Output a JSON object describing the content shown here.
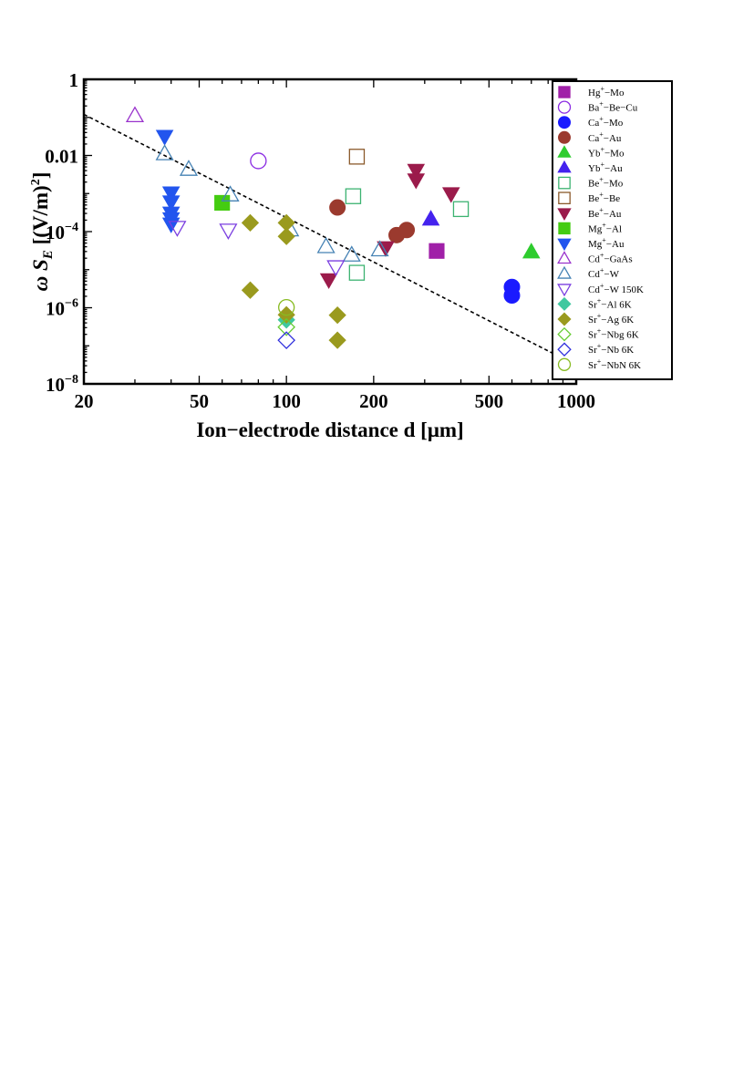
{
  "chart_data": {
    "type": "scatter",
    "title": "",
    "xlabel": "Ion−electrode distance d [μm]",
    "ylabel": "ω S_E [(V/m)²]",
    "xscale": "log",
    "yscale": "log",
    "xlim": [
      20,
      1000
    ],
    "ylim": [
      1e-08,
      1
    ],
    "x_ticks": [
      {
        "value": 20,
        "label": "20"
      },
      {
        "value": 50,
        "label": "50"
      },
      {
        "value": 100,
        "label": "100"
      },
      {
        "value": 200,
        "label": "200"
      },
      {
        "value": 500,
        "label": "500"
      },
      {
        "value": 1000,
        "label": "1000"
      }
    ],
    "y_ticks": [
      {
        "value": 1,
        "label": "1"
      },
      {
        "value": 0.01,
        "label": "0.01"
      },
      {
        "value": 0.0001,
        "label": "10",
        "exp": "−4"
      },
      {
        "value": 1e-06,
        "label": "10",
        "exp": "−6"
      },
      {
        "value": 1e-08,
        "label": "10",
        "exp": "−8"
      }
    ],
    "legend_position": "right",
    "trend_line": {
      "style": "dashed",
      "points": [
        [
          20,
          0.12
        ],
        [
          1000,
          3.09e-08
        ]
      ]
    },
    "series": [
      {
        "name": "Hg⁺−Mo",
        "marker": "square",
        "filled": true,
        "color": "#a020a8",
        "points": [
          [
            330,
            3.1e-05
          ]
        ]
      },
      {
        "name": "Ba⁺−Be−Cu",
        "marker": "circle",
        "filled": false,
        "color": "#8a2be2",
        "points": [
          [
            80,
            0.0072
          ]
        ]
      },
      {
        "name": "Ca⁺−Mo",
        "marker": "circle",
        "filled": true,
        "color": "#1a1aff",
        "points": [
          [
            600,
            3.5e-06
          ],
          [
            600,
            2.1e-06
          ]
        ]
      },
      {
        "name": "Ca⁺−Au",
        "marker": "circle",
        "filled": true,
        "color": "#9b3a2e",
        "points": [
          [
            150,
            0.00043
          ],
          [
            240,
            8.1e-05
          ],
          [
            260,
            0.00011
          ]
        ]
      },
      {
        "name": "Yb⁺−Mo",
        "marker": "triangle-up",
        "filled": true,
        "color": "#2ecc2e",
        "points": [
          [
            700,
            2.9e-05
          ]
        ]
      },
      {
        "name": "Yb⁺−Au",
        "marker": "triangle-up",
        "filled": true,
        "color": "#4422ee",
        "points": [
          [
            315,
            0.00021
          ]
        ]
      },
      {
        "name": "Be⁺−Mo",
        "marker": "square",
        "filled": false,
        "color": "#3cb371",
        "points": [
          [
            170,
            0.00085
          ],
          [
            175,
            8.3e-06
          ],
          [
            400,
            0.00039
          ]
        ]
      },
      {
        "name": "Be⁺−Be",
        "marker": "square",
        "filled": false,
        "color": "#8b5a2b",
        "points": [
          [
            175,
            0.0093
          ]
        ]
      },
      {
        "name": "Be⁺−Au",
        "marker": "triangle-down",
        "filled": true,
        "color": "#9b1b4b",
        "points": [
          [
            140,
            5.5e-06
          ],
          [
            220,
            3.8e-05
          ],
          [
            280,
            0.0041
          ],
          [
            280,
            0.0023
          ],
          [
            370,
            0.001
          ]
        ]
      },
      {
        "name": "Mg⁺−Al",
        "marker": "square",
        "filled": true,
        "color": "#44cc11",
        "points": [
          [
            60,
            0.00057
          ]
        ]
      },
      {
        "name": "Mg⁺−Au",
        "marker": "triangle-down",
        "filled": true,
        "color": "#2255ee",
        "points": [
          [
            38,
            0.032
          ],
          [
            40,
            0.00105
          ],
          [
            40,
            0.00061
          ],
          [
            40,
            0.00031
          ],
          [
            40,
            0.00022
          ],
          [
            40,
            0.00016
          ]
        ]
      },
      {
        "name": "Cd⁺−GaAs",
        "marker": "triangle-up",
        "filled": false,
        "color": "#9932cc",
        "points": [
          [
            30,
            0.11
          ]
        ]
      },
      {
        "name": "Cd⁺−W",
        "marker": "triangle-up",
        "filled": false,
        "color": "#4682b4",
        "points": [
          [
            38,
            0.011
          ],
          [
            46,
            0.0043
          ],
          [
            64,
            0.00091
          ],
          [
            103,
            0.00011
          ],
          [
            137,
            4e-05
          ],
          [
            168,
            2.4e-05
          ],
          [
            210,
            3.3e-05
          ]
        ]
      },
      {
        "name": "Cd⁺−W 150K",
        "marker": "triangle-down",
        "filled": false,
        "color": "#7b3fe0",
        "points": [
          [
            42,
            0.00013
          ],
          [
            63,
            0.00011
          ],
          [
            148,
            1.2e-05
          ]
        ]
      },
      {
        "name": "Sr⁺−Al 6K",
        "marker": "diamond",
        "filled": true,
        "color": "#40c8a0",
        "points": [
          [
            100,
            4.8e-07
          ]
        ]
      },
      {
        "name": "Sr⁺−Ag 6K",
        "marker": "diamond",
        "filled": true,
        "color": "#9a9a1e",
        "points": [
          [
            75,
            0.00017
          ],
          [
            75,
            2.9e-06
          ],
          [
            100,
            0.00017
          ],
          [
            100,
            7.5e-05
          ],
          [
            100,
            6.5e-07
          ],
          [
            150,
            6.4e-07
          ],
          [
            150,
            1.4e-07
          ]
        ]
      },
      {
        "name": "Sr⁺−Nbg 6K",
        "marker": "diamond",
        "filled": false,
        "color": "#66cc33",
        "points": [
          [
            100,
            3.1e-07
          ]
        ]
      },
      {
        "name": "Sr⁺−Nb 6K",
        "marker": "diamond",
        "filled": false,
        "color": "#3030dd",
        "points": [
          [
            100,
            1.4e-07
          ]
        ]
      },
      {
        "name": "Sr⁺−NbN 6K",
        "marker": "circle",
        "filled": false,
        "color": "#88bb22",
        "points": [
          [
            100,
            1.02e-06
          ]
        ]
      }
    ]
  }
}
